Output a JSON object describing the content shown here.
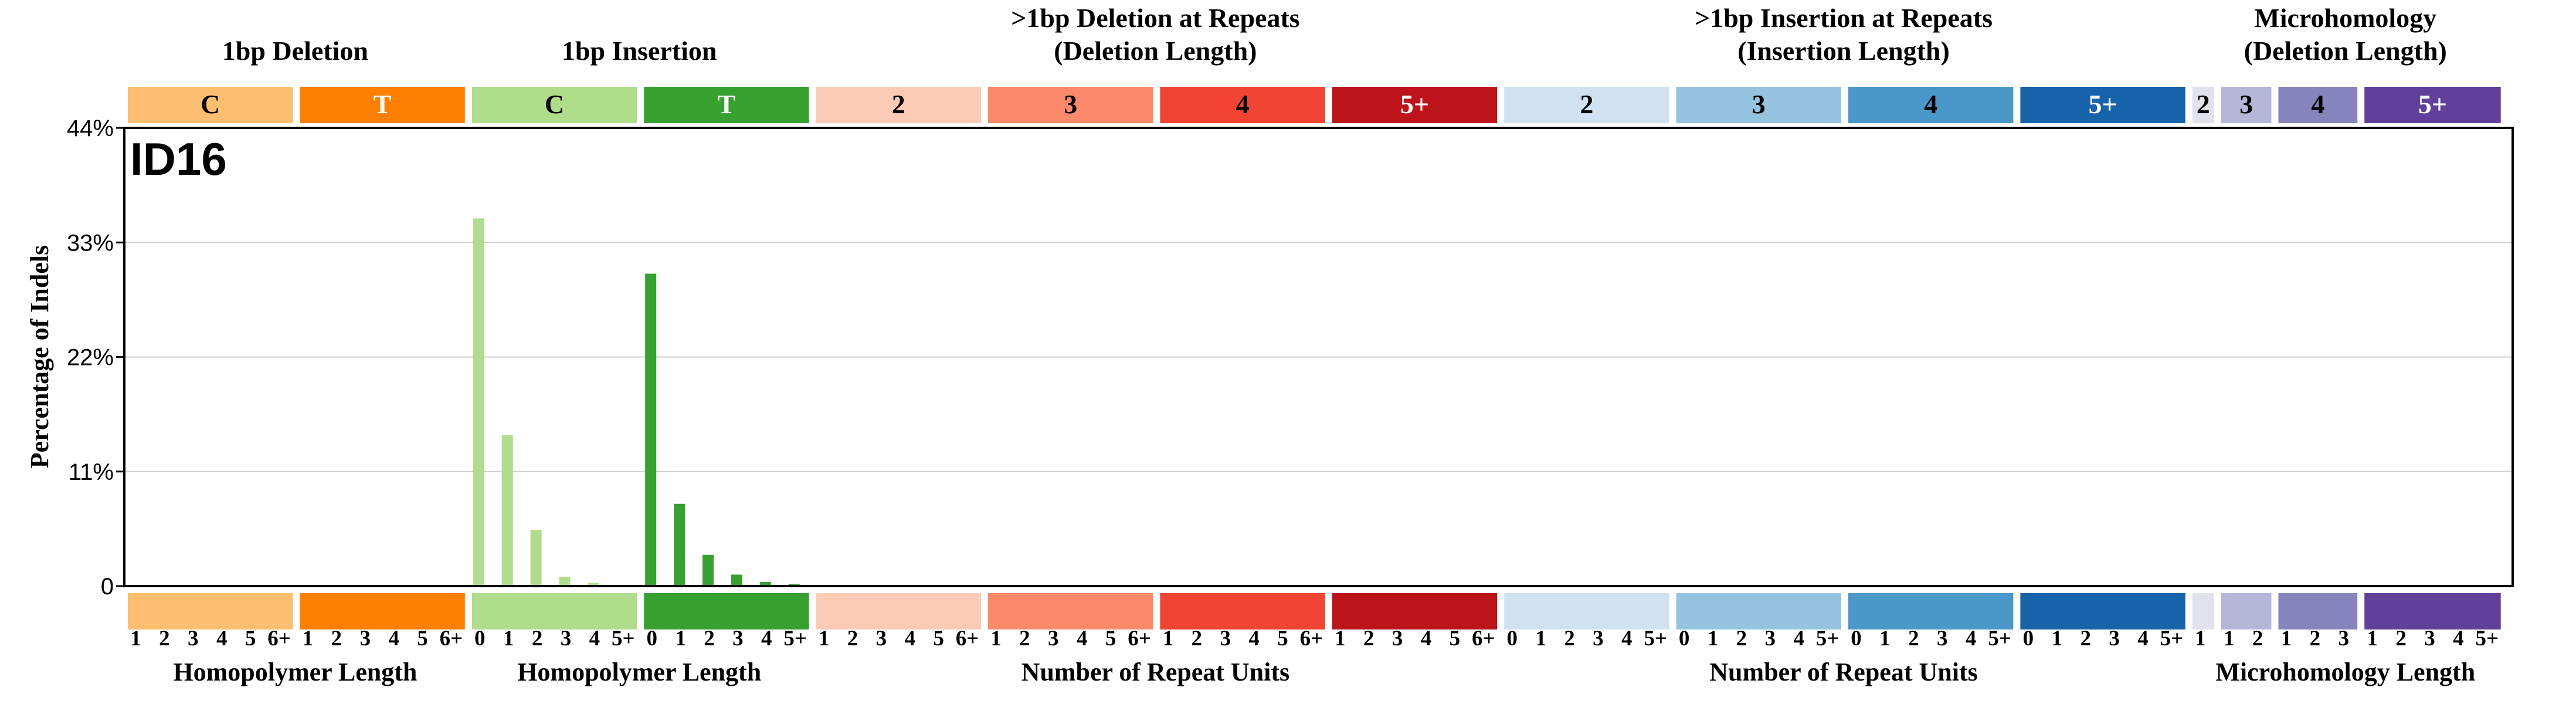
{
  "chart_data": {
    "type": "bar",
    "title": "ID16",
    "ylabel": "Percentage of Indels",
    "ylim": [
      0,
      44
    ],
    "yticks": [
      "0",
      "11%",
      "22%",
      "33%",
      "44%"
    ],
    "ytick_values": [
      0,
      11,
      22,
      33,
      44
    ],
    "grid": true,
    "groups": [
      {
        "header": "C",
        "color": "#FDBE6F",
        "text_color": "#000000",
        "ticks": [
          "1",
          "2",
          "3",
          "4",
          "5",
          "6+"
        ],
        "values": [
          0,
          0,
          0,
          0,
          0,
          0
        ]
      },
      {
        "header": "T",
        "color": "#FF8001",
        "text_color": "#FFFFFF",
        "ticks": [
          "1",
          "2",
          "3",
          "4",
          "5",
          "6+"
        ],
        "values": [
          0,
          0,
          0,
          0,
          0,
          0
        ]
      },
      {
        "header": "C",
        "color": "#B0DD8B",
        "text_color": "#000000",
        "ticks": [
          "0",
          "1",
          "2",
          "3",
          "4",
          "5+"
        ],
        "values": [
          35.3,
          14.5,
          5.4,
          0.9,
          0.3,
          0
        ]
      },
      {
        "header": "T",
        "color": "#36A12E",
        "text_color": "#FFFFFF",
        "ticks": [
          "0",
          "1",
          "2",
          "3",
          "4",
          "5+"
        ],
        "values": [
          30.0,
          7.9,
          3.0,
          1.1,
          0.4,
          0.2
        ]
      },
      {
        "header": "2",
        "color": "#FDCAB5",
        "text_color": "#000000",
        "ticks": [
          "1",
          "2",
          "3",
          "4",
          "5",
          "6+"
        ],
        "values": [
          0,
          0,
          0,
          0,
          0,
          0
        ]
      },
      {
        "header": "3",
        "color": "#FC8A6A",
        "text_color": "#000000",
        "ticks": [
          "1",
          "2",
          "3",
          "4",
          "5",
          "6+"
        ],
        "values": [
          0,
          0,
          0,
          0,
          0,
          0
        ]
      },
      {
        "header": "4",
        "color": "#F14432",
        "text_color": "#000000",
        "ticks": [
          "1",
          "2",
          "3",
          "4",
          "5",
          "6+"
        ],
        "values": [
          0,
          0,
          0,
          0,
          0,
          0
        ]
      },
      {
        "header": "5+",
        "color": "#BC141A",
        "text_color": "#FFFFFF",
        "ticks": [
          "1",
          "2",
          "3",
          "4",
          "5",
          "6+"
        ],
        "values": [
          0,
          0,
          0,
          0,
          0,
          0
        ]
      },
      {
        "header": "2",
        "color": "#D0E1F2",
        "text_color": "#000000",
        "ticks": [
          "0",
          "1",
          "2",
          "3",
          "4",
          "5+"
        ],
        "values": [
          0,
          0,
          0,
          0,
          0,
          0
        ]
      },
      {
        "header": "3",
        "color": "#94C4DF",
        "text_color": "#000000",
        "ticks": [
          "0",
          "1",
          "2",
          "3",
          "4",
          "5+"
        ],
        "values": [
          0,
          0,
          0,
          0,
          0,
          0
        ]
      },
      {
        "header": "4",
        "color": "#4A98C9",
        "text_color": "#000000",
        "ticks": [
          "0",
          "1",
          "2",
          "3",
          "4",
          "5+"
        ],
        "values": [
          0,
          0,
          0,
          0,
          0,
          0
        ]
      },
      {
        "header": "5+",
        "color": "#1764AB",
        "text_color": "#FFFFFF",
        "ticks": [
          "0",
          "1",
          "2",
          "3",
          "4",
          "5+"
        ],
        "values": [
          0,
          0,
          0,
          0,
          0,
          0
        ]
      },
      {
        "header": "2",
        "color": "#E2E2EF",
        "text_color": "#000000",
        "ticks": [
          "1"
        ],
        "values": [
          0
        ]
      },
      {
        "header": "3",
        "color": "#B6B6D8",
        "text_color": "#000000",
        "ticks": [
          "1",
          "2"
        ],
        "values": [
          0,
          0
        ]
      },
      {
        "header": "4",
        "color": "#8683BD",
        "text_color": "#000000",
        "ticks": [
          "1",
          "2",
          "3"
        ],
        "values": [
          0,
          0,
          0
        ]
      },
      {
        "header": "5+",
        "color": "#61409B",
        "text_color": "#FFFFFF",
        "ticks": [
          "1",
          "2",
          "3",
          "4",
          "5+"
        ],
        "values": [
          0,
          0,
          0,
          0,
          0
        ]
      }
    ],
    "top_labels": [
      {
        "lines": [
          "1bp Deletion"
        ],
        "groups": [
          0,
          1
        ]
      },
      {
        "lines": [
          "1bp Insertion"
        ],
        "groups": [
          2,
          3
        ]
      },
      {
        "lines": [
          ">1bp Deletion at Repeats",
          "(Deletion Length)"
        ],
        "groups": [
          4,
          7
        ]
      },
      {
        "lines": [
          ">1bp Insertion at Repeats",
          "(Insertion Length)"
        ],
        "groups": [
          8,
          11
        ]
      },
      {
        "lines": [
          "Microhomology",
          "(Deletion Length)"
        ],
        "groups": [
          12,
          15
        ]
      }
    ],
    "bottom_labels": [
      {
        "text": "Homopolymer Length",
        "groups": [
          0,
          1
        ]
      },
      {
        "text": "Homopolymer Length",
        "groups": [
          2,
          3
        ]
      },
      {
        "text": "Number of Repeat Units",
        "groups": [
          4,
          7
        ]
      },
      {
        "text": "Number of Repeat Units",
        "groups": [
          8,
          11
        ]
      },
      {
        "text": "Microhomology Length",
        "groups": [
          12,
          15
        ]
      }
    ]
  }
}
